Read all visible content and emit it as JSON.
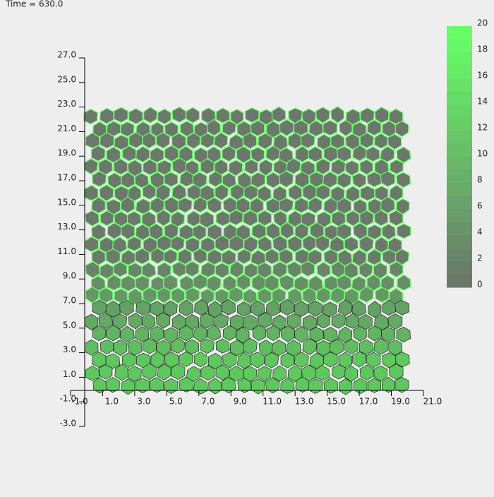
{
  "header": {
    "time_label": "Time = 630.0"
  },
  "axes": {
    "x_ticks": [
      "-1.0",
      "1.0",
      "3.0",
      "5.0",
      "7.0",
      "9.0",
      "11.0",
      "13.0",
      "15.0",
      "17.0",
      "19.0",
      "21.0"
    ],
    "y_ticks": [
      "27.0",
      "25.0",
      "23.0",
      "21.0",
      "19.0",
      "17.0",
      "15.0",
      "13.0",
      "11.0",
      "9.0",
      "7.0",
      "5.0",
      "3.0",
      "1.0",
      "-1.0",
      "-3.0"
    ]
  },
  "colorbar": {
    "ticks": [
      "20",
      "18",
      "16",
      "14",
      "12",
      "10",
      "8",
      "6",
      "4",
      "2",
      "0"
    ]
  }
}
